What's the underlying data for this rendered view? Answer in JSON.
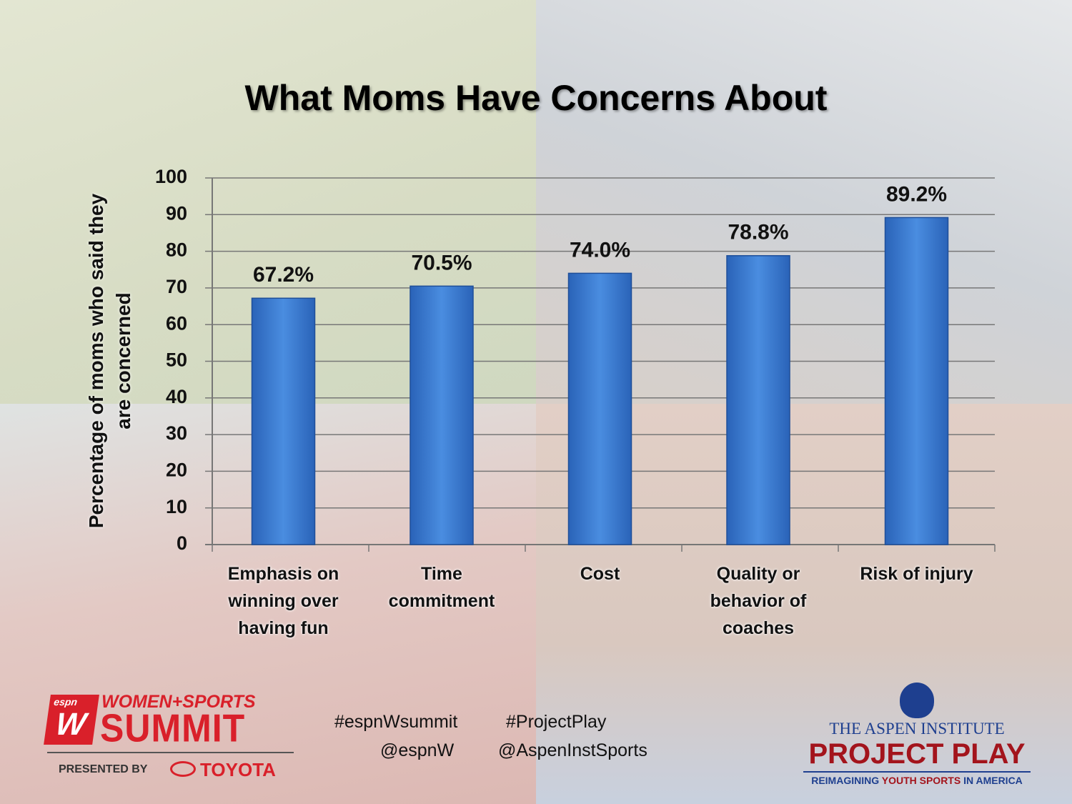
{
  "chart_data": {
    "type": "bar",
    "title": "What Moms Have Concerns About",
    "y_label": "Percentage of moms who said they are concerned",
    "categories": [
      "Emphasis on winning over having fun",
      "Time commitment",
      "Cost",
      "Quality or behavior of coaches",
      "Risk of injury"
    ],
    "values": [
      67.2,
      70.5,
      74.0,
      78.8,
      89.2
    ],
    "value_labels": [
      "67.2%",
      "70.5%",
      "74.0%",
      "78.8%",
      "89.2%"
    ],
    "color": "#3a7fd6",
    "ylim": [
      0,
      100
    ],
    "yticks": [
      0,
      10,
      20,
      30,
      40,
      50,
      60,
      70,
      80,
      90,
      100
    ],
    "grid": true
  },
  "footer": {
    "summit_logo": {
      "espn": "espn",
      "line1": "WOMEN+SPORTS",
      "line2": "SUMMIT",
      "presented": "PRESENTED BY",
      "sponsor": "TOYOTA"
    },
    "hashtags": [
      "#espnWsummit",
      "#ProjectPlay"
    ],
    "handles": [
      "@espnW",
      "@AspenInstSports"
    ],
    "aspen_logo": {
      "institute": "THE ASPEN INSTITUTE",
      "program": "PROJECT PLAY",
      "tagline_start": "REIMAGINING ",
      "tagline_mid": "YOUTH SPORTS",
      "tagline_end": " IN AMERICA"
    }
  }
}
